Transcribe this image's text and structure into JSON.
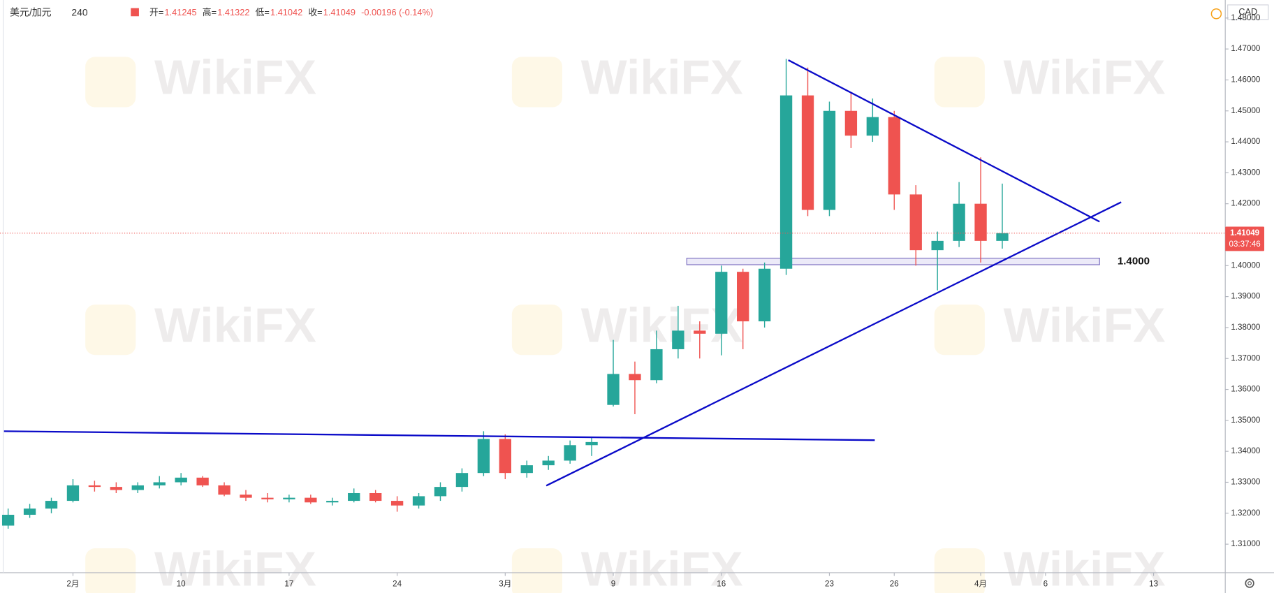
{
  "chart_data": {
    "type": "candlestick",
    "symbol": "美元/加元",
    "interval": "240",
    "header_stats": [
      {
        "label": "开=",
        "value": "1.41245"
      },
      {
        "label": "高=",
        "value": "1.41322"
      },
      {
        "label": "低=",
        "value": "1.41042"
      },
      {
        "label": "收=",
        "value": "1.41049"
      },
      {
        "label": "",
        "value": "-0.00196 (-0.14%)"
      }
    ],
    "currency": "CAD",
    "watermark": "WikiFX",
    "up_color": "#26a69a",
    "down_color": "#ef5350",
    "open": [
      1.316,
      1.3195,
      1.3215,
      1.324,
      1.329,
      1.3285,
      1.3275,
      1.329,
      1.33,
      1.3315,
      1.329,
      1.326,
      1.325,
      1.3245,
      1.325,
      1.3235,
      1.324,
      1.3265,
      1.324,
      1.3225,
      1.3255,
      1.3285,
      1.333,
      1.344,
      1.333,
      1.3355,
      1.337,
      1.342,
      1.355,
      1.365,
      1.363,
      1.373,
      1.379,
      1.378,
      1.398,
      1.382,
      1.399,
      1.455,
      1.418,
      1.45,
      1.442,
      1.448,
      1.423,
      1.405,
      1.408,
      1.42,
      1.408
    ],
    "high": [
      1.3215,
      1.323,
      1.325,
      1.331,
      1.3305,
      1.33,
      1.33,
      1.332,
      1.333,
      1.332,
      1.33,
      1.3275,
      1.3265,
      1.326,
      1.326,
      1.325,
      1.328,
      1.3275,
      1.3255,
      1.3265,
      1.33,
      1.3345,
      1.3465,
      1.3455,
      1.337,
      1.3385,
      1.3435,
      1.3445,
      1.376,
      1.369,
      1.379,
      1.387,
      1.382,
      1.4,
      1.399,
      1.401,
      1.4668,
      1.464,
      1.453,
      1.456,
      1.454,
      1.45,
      1.426,
      1.411,
      1.427,
      1.435,
      1.4265
    ],
    "low": [
      1.315,
      1.3185,
      1.32,
      1.3235,
      1.327,
      1.3265,
      1.3265,
      1.328,
      1.329,
      1.3285,
      1.3255,
      1.324,
      1.3235,
      1.3235,
      1.323,
      1.3225,
      1.3235,
      1.3235,
      1.3205,
      1.3215,
      1.324,
      1.327,
      1.332,
      1.331,
      1.3315,
      1.334,
      1.336,
      1.3385,
      1.3545,
      1.352,
      1.362,
      1.37,
      1.37,
      1.371,
      1.373,
      1.38,
      1.397,
      1.416,
      1.416,
      1.438,
      1.44,
      1.418,
      1.4,
      1.392,
      1.406,
      1.401,
      1.4055
    ],
    "close": [
      1.3195,
      1.3215,
      1.324,
      1.329,
      1.3285,
      1.3275,
      1.329,
      1.33,
      1.3315,
      1.329,
      1.326,
      1.325,
      1.3245,
      1.325,
      1.3235,
      1.324,
      1.3265,
      1.324,
      1.3225,
      1.3255,
      1.3285,
      1.333,
      1.344,
      1.333,
      1.3355,
      1.337,
      1.342,
      1.343,
      1.365,
      1.363,
      1.373,
      1.379,
      1.378,
      1.398,
      1.382,
      1.399,
      1.455,
      1.418,
      1.45,
      1.442,
      1.448,
      1.423,
      1.405,
      1.408,
      1.42,
      1.408,
      1.4105
    ],
    "xlim": [
      -0.376,
      56.316
    ],
    "xticks": [
      {
        "value": 3,
        "label": "2月"
      },
      {
        "value": 8,
        "label": "10"
      },
      {
        "value": 13,
        "label": "17"
      },
      {
        "value": 18,
        "label": "24"
      },
      {
        "value": 23,
        "label": "3月"
      },
      {
        "value": 28,
        "label": "9"
      },
      {
        "value": 33,
        "label": "16"
      },
      {
        "value": 38,
        "label": "23"
      },
      {
        "value": 41,
        "label": "26"
      },
      {
        "value": 45,
        "label": "4月"
      },
      {
        "value": 48,
        "label": "6"
      },
      {
        "value": 53,
        "label": "13"
      }
    ],
    "ylim": [
      1.300787,
      1.485827
    ],
    "yticks": [
      {
        "value": 1.31,
        "label": "1.31000"
      },
      {
        "value": 1.32,
        "label": "1.32000"
      },
      {
        "value": 1.33,
        "label": "1.33000"
      },
      {
        "value": 1.34,
        "label": "1.34000"
      },
      {
        "value": 1.35,
        "label": "1.35000"
      },
      {
        "value": 1.36,
        "label": "1.36000"
      },
      {
        "value": 1.37,
        "label": "1.37000"
      },
      {
        "value": 1.38,
        "label": "1.38000"
      },
      {
        "value": 1.39,
        "label": "1.39000"
      },
      {
        "value": 1.4,
        "label": "1.40000"
      },
      {
        "value": 1.41,
        "label": "1.41000"
      },
      {
        "value": 1.42,
        "label": "1.42000"
      },
      {
        "value": 1.43,
        "label": "1.43000"
      },
      {
        "value": 1.44,
        "label": "1.44000"
      },
      {
        "value": 1.45,
        "label": "1.45000"
      },
      {
        "value": 1.46,
        "label": "1.46000"
      },
      {
        "value": 1.47,
        "label": "1.47000"
      },
      {
        "value": 1.48,
        "label": "1.48000"
      }
    ],
    "grid": false,
    "last_price": {
      "value": 1.41049,
      "label": "1.41049",
      "color": "#ef5350"
    },
    "countdown": "03:37:46",
    "trend_lines": [
      {
        "x": [
          36.1,
          50.5
        ],
        "y": [
          1.4664,
          1.4142
        ],
        "color": "#0a0ac8"
      },
      {
        "x": [
          24.9,
          51.5
        ],
        "y": [
          1.3289,
          1.4205
        ],
        "color": "#0a0ac8"
      },
      {
        "x": [
          -0.19,
          40.1
        ],
        "y": [
          1.3465,
          1.3436
        ],
        "color": "#0a0ac8"
      }
    ],
    "zone": {
      "x": [
        31.4,
        50.5
      ],
      "y": [
        1.4003,
        1.4024
      ],
      "label": "1.4000",
      "color": "#7b6fc0"
    }
  }
}
